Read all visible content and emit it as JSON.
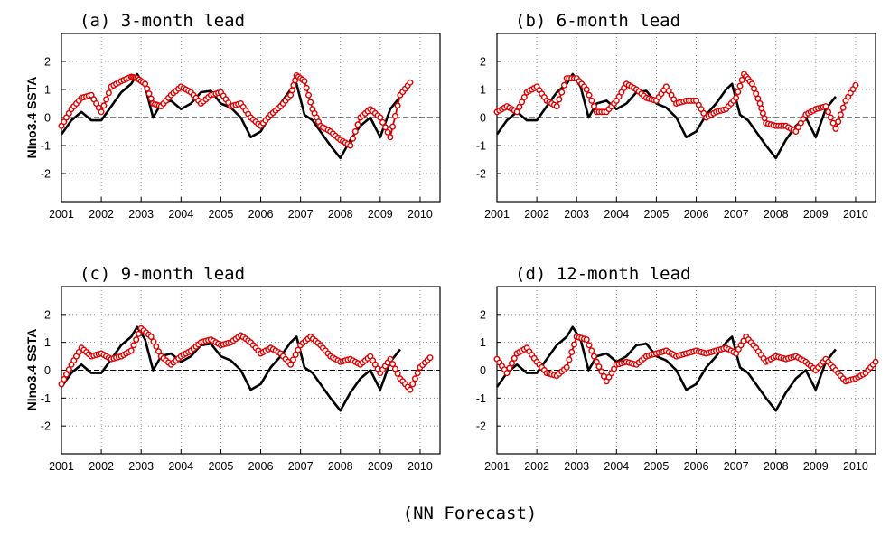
{
  "figure": {
    "footer": "(NN Forecast)"
  },
  "chart_data": [
    {
      "type": "line",
      "title": "(a) 3-month lead",
      "ylabel": "NIno3.4 SSTA",
      "xlim": [
        2001,
        2010.5
      ],
      "ylim": [
        -3,
        3
      ],
      "xticks": [
        2001,
        2002,
        2003,
        2004,
        2005,
        2006,
        2007,
        2008,
        2009,
        2010
      ],
      "yticks": [
        -2,
        -1,
        0,
        1,
        2
      ],
      "grid": true,
      "series": [
        {
          "color": "#000000",
          "marker": "none",
          "x": [
            2001.0,
            2001.25,
            2001.5,
            2001.75,
            2002.0,
            2002.25,
            2002.5,
            2002.75,
            2002.9,
            2003.1,
            2003.3,
            2003.5,
            2003.75,
            2004.0,
            2004.25,
            2004.5,
            2004.75,
            2005.0,
            2005.25,
            2005.5,
            2005.75,
            2006.0,
            2006.25,
            2006.5,
            2006.75,
            2006.9,
            2007.1,
            2007.3,
            2007.5,
            2007.75,
            2008.0,
            2008.25,
            2008.5,
            2008.75,
            2009.0,
            2009.25,
            2009.5
          ],
          "y": [
            -0.6,
            -0.1,
            0.2,
            -0.1,
            -0.1,
            0.4,
            0.9,
            1.2,
            1.55,
            1.1,
            0.0,
            0.5,
            0.6,
            0.3,
            0.5,
            0.9,
            0.95,
            0.5,
            0.35,
            0.0,
            -0.7,
            -0.5,
            0.1,
            0.5,
            1.0,
            1.2,
            0.1,
            -0.1,
            -0.5,
            -1.0,
            -1.45,
            -0.8,
            -0.3,
            0.0,
            -0.7,
            0.3,
            0.75
          ]
        },
        {
          "color": "#dd0000",
          "marker": "circle",
          "x": [
            2001.0,
            2001.25,
            2001.5,
            2001.75,
            2002.0,
            2002.25,
            2002.5,
            2002.75,
            2002.9,
            2003.1,
            2003.3,
            2003.5,
            2003.75,
            2004.0,
            2004.25,
            2004.5,
            2004.75,
            2005.0,
            2005.25,
            2005.5,
            2005.75,
            2006.0,
            2006.25,
            2006.5,
            2006.75,
            2006.9,
            2007.1,
            2007.3,
            2007.5,
            2007.75,
            2008.0,
            2008.25,
            2008.5,
            2008.75,
            2009.0,
            2009.25,
            2009.5,
            2009.75
          ],
          "y": [
            -0.3,
            0.3,
            0.7,
            0.8,
            0.2,
            1.1,
            1.3,
            1.45,
            1.4,
            1.2,
            0.5,
            0.4,
            0.8,
            1.1,
            0.9,
            0.5,
            0.8,
            0.9,
            0.4,
            0.5,
            0.0,
            -0.3,
            0.1,
            0.4,
            0.8,
            1.5,
            1.3,
            0.3,
            -0.3,
            -0.5,
            -0.8,
            -1.0,
            0.0,
            0.3,
            0.0,
            -0.7,
            0.8,
            1.25
          ]
        }
      ]
    },
    {
      "type": "line",
      "title": "(b) 6-month lead",
      "ylabel": "",
      "xlim": [
        2001,
        2010.5
      ],
      "ylim": [
        -3,
        3
      ],
      "xticks": [
        2001,
        2002,
        2003,
        2004,
        2005,
        2006,
        2007,
        2008,
        2009,
        2010
      ],
      "yticks": [
        -2,
        -1,
        0,
        1,
        2
      ],
      "grid": true,
      "series": [
        {
          "color": "#000000",
          "marker": "none",
          "x": [
            2001.0,
            2001.25,
            2001.5,
            2001.75,
            2002.0,
            2002.25,
            2002.5,
            2002.75,
            2002.9,
            2003.1,
            2003.3,
            2003.5,
            2003.75,
            2004.0,
            2004.25,
            2004.5,
            2004.75,
            2005.0,
            2005.25,
            2005.5,
            2005.75,
            2006.0,
            2006.25,
            2006.5,
            2006.75,
            2006.9,
            2007.1,
            2007.3,
            2007.5,
            2007.75,
            2008.0,
            2008.25,
            2008.5,
            2008.75,
            2009.0,
            2009.25,
            2009.5
          ],
          "y": [
            -0.6,
            -0.1,
            0.2,
            -0.1,
            -0.1,
            0.4,
            0.9,
            1.2,
            1.55,
            1.1,
            0.0,
            0.5,
            0.6,
            0.3,
            0.5,
            0.9,
            0.95,
            0.5,
            0.35,
            0.0,
            -0.7,
            -0.5,
            0.1,
            0.5,
            1.0,
            1.2,
            0.1,
            -0.1,
            -0.5,
            -1.0,
            -1.45,
            -0.8,
            -0.3,
            0.0,
            -0.7,
            0.3,
            0.75
          ]
        },
        {
          "color": "#dd0000",
          "marker": "circle",
          "x": [
            2001.0,
            2001.25,
            2001.5,
            2001.75,
            2002.0,
            2002.25,
            2002.5,
            2002.75,
            2003.0,
            2003.25,
            2003.5,
            2003.75,
            2004.0,
            2004.25,
            2004.5,
            2004.75,
            2005.0,
            2005.25,
            2005.5,
            2005.75,
            2006.0,
            2006.25,
            2006.5,
            2006.75,
            2007.0,
            2007.2,
            2007.4,
            2007.6,
            2007.75,
            2008.0,
            2008.25,
            2008.5,
            2008.75,
            2009.0,
            2009.25,
            2009.5,
            2009.75,
            2010.0
          ],
          "y": [
            0.2,
            0.4,
            0.2,
            0.9,
            1.1,
            0.6,
            0.4,
            1.4,
            1.4,
            1.0,
            0.2,
            0.2,
            0.6,
            1.2,
            1.0,
            0.7,
            0.6,
            1.1,
            0.5,
            0.6,
            0.6,
            0.0,
            0.2,
            0.3,
            0.7,
            1.55,
            1.2,
            0.5,
            -0.2,
            -0.3,
            -0.3,
            -0.5,
            0.1,
            0.3,
            0.4,
            -0.4,
            0.6,
            1.15
          ]
        }
      ]
    },
    {
      "type": "line",
      "title": "(c) 9-month lead",
      "ylabel": "NIno3.4 SSTA",
      "xlim": [
        2001,
        2010.5
      ],
      "ylim": [
        -3,
        3
      ],
      "xticks": [
        2001,
        2002,
        2003,
        2004,
        2005,
        2006,
        2007,
        2008,
        2009,
        2010
      ],
      "yticks": [
        -2,
        -1,
        0,
        1,
        2
      ],
      "grid": true,
      "series": [
        {
          "color": "#000000",
          "marker": "none",
          "x": [
            2001.0,
            2001.25,
            2001.5,
            2001.75,
            2002.0,
            2002.25,
            2002.5,
            2002.75,
            2002.9,
            2003.1,
            2003.3,
            2003.5,
            2003.75,
            2004.0,
            2004.25,
            2004.5,
            2004.75,
            2005.0,
            2005.25,
            2005.5,
            2005.75,
            2006.0,
            2006.25,
            2006.5,
            2006.75,
            2006.9,
            2007.1,
            2007.3,
            2007.5,
            2007.75,
            2008.0,
            2008.25,
            2008.5,
            2008.75,
            2009.0,
            2009.25,
            2009.5
          ],
          "y": [
            -0.6,
            -0.1,
            0.2,
            -0.1,
            -0.1,
            0.4,
            0.9,
            1.2,
            1.55,
            1.1,
            0.0,
            0.5,
            0.6,
            0.3,
            0.5,
            0.9,
            0.95,
            0.5,
            0.35,
            0.0,
            -0.7,
            -0.5,
            0.1,
            0.5,
            1.0,
            1.2,
            0.1,
            -0.1,
            -0.5,
            -1.0,
            -1.45,
            -0.8,
            -0.3,
            0.0,
            -0.7,
            0.3,
            0.75
          ]
        },
        {
          "color": "#dd0000",
          "marker": "circle",
          "x": [
            2001.0,
            2001.25,
            2001.5,
            2001.75,
            2002.0,
            2002.25,
            2002.5,
            2002.75,
            2003.0,
            2003.25,
            2003.5,
            2003.75,
            2004.0,
            2004.25,
            2004.5,
            2004.75,
            2005.0,
            2005.25,
            2005.5,
            2005.75,
            2006.0,
            2006.25,
            2006.5,
            2006.75,
            2007.0,
            2007.25,
            2007.5,
            2007.75,
            2008.0,
            2008.25,
            2008.5,
            2008.75,
            2009.0,
            2009.25,
            2009.5,
            2009.75,
            2010.0,
            2010.25
          ],
          "y": [
            -0.5,
            0.2,
            0.8,
            0.5,
            0.6,
            0.4,
            0.5,
            0.7,
            1.5,
            1.2,
            0.5,
            0.2,
            0.5,
            0.7,
            1.0,
            1.1,
            0.9,
            1.0,
            1.25,
            1.0,
            0.6,
            0.8,
            0.6,
            0.2,
            0.9,
            1.2,
            0.9,
            0.5,
            0.3,
            0.4,
            0.2,
            0.5,
            -0.1,
            0.4,
            -0.3,
            -0.7,
            0.1,
            0.45
          ]
        }
      ]
    },
    {
      "type": "line",
      "title": "(d) 12-month lead",
      "ylabel": "",
      "xlim": [
        2001,
        2010.5
      ],
      "ylim": [
        -3,
        3
      ],
      "xticks": [
        2001,
        2002,
        2003,
        2004,
        2005,
        2006,
        2007,
        2008,
        2009,
        2010
      ],
      "yticks": [
        -2,
        -1,
        0,
        1,
        2
      ],
      "grid": true,
      "series": [
        {
          "color": "#000000",
          "marker": "none",
          "x": [
            2001.0,
            2001.25,
            2001.5,
            2001.75,
            2002.0,
            2002.25,
            2002.5,
            2002.75,
            2002.9,
            2003.1,
            2003.3,
            2003.5,
            2003.75,
            2004.0,
            2004.25,
            2004.5,
            2004.75,
            2005.0,
            2005.25,
            2005.5,
            2005.75,
            2006.0,
            2006.25,
            2006.5,
            2006.75,
            2006.9,
            2007.1,
            2007.3,
            2007.5,
            2007.75,
            2008.0,
            2008.25,
            2008.5,
            2008.75,
            2009.0,
            2009.25,
            2009.5
          ],
          "y": [
            -0.6,
            -0.1,
            0.2,
            -0.1,
            -0.1,
            0.4,
            0.9,
            1.2,
            1.55,
            1.1,
            0.0,
            0.5,
            0.6,
            0.3,
            0.5,
            0.9,
            0.95,
            0.5,
            0.35,
            0.0,
            -0.7,
            -0.5,
            0.1,
            0.5,
            1.0,
            1.2,
            0.1,
            -0.1,
            -0.5,
            -1.0,
            -1.45,
            -0.8,
            -0.3,
            0.0,
            -0.7,
            0.3,
            0.75
          ]
        },
        {
          "color": "#dd0000",
          "marker": "circle",
          "x": [
            2001.0,
            2001.25,
            2001.5,
            2001.75,
            2002.0,
            2002.25,
            2002.5,
            2002.75,
            2003.0,
            2003.25,
            2003.5,
            2003.75,
            2004.0,
            2004.25,
            2004.5,
            2004.75,
            2005.0,
            2005.25,
            2005.5,
            2005.75,
            2006.0,
            2006.25,
            2006.5,
            2006.75,
            2007.0,
            2007.25,
            2007.5,
            2007.75,
            2008.0,
            2008.25,
            2008.5,
            2008.75,
            2009.0,
            2009.25,
            2009.5,
            2009.75,
            2010.0,
            2010.25,
            2010.5
          ],
          "y": [
            0.4,
            -0.1,
            0.6,
            0.8,
            0.3,
            -0.1,
            -0.2,
            0.1,
            1.2,
            1.1,
            0.3,
            -0.4,
            0.2,
            0.3,
            0.2,
            0.5,
            0.6,
            0.7,
            0.5,
            0.6,
            0.7,
            0.6,
            0.7,
            0.8,
            0.6,
            1.2,
            0.8,
            0.3,
            0.5,
            0.4,
            0.5,
            0.3,
            0.0,
            0.4,
            0.0,
            -0.4,
            -0.3,
            -0.1,
            0.3
          ]
        }
      ]
    }
  ]
}
